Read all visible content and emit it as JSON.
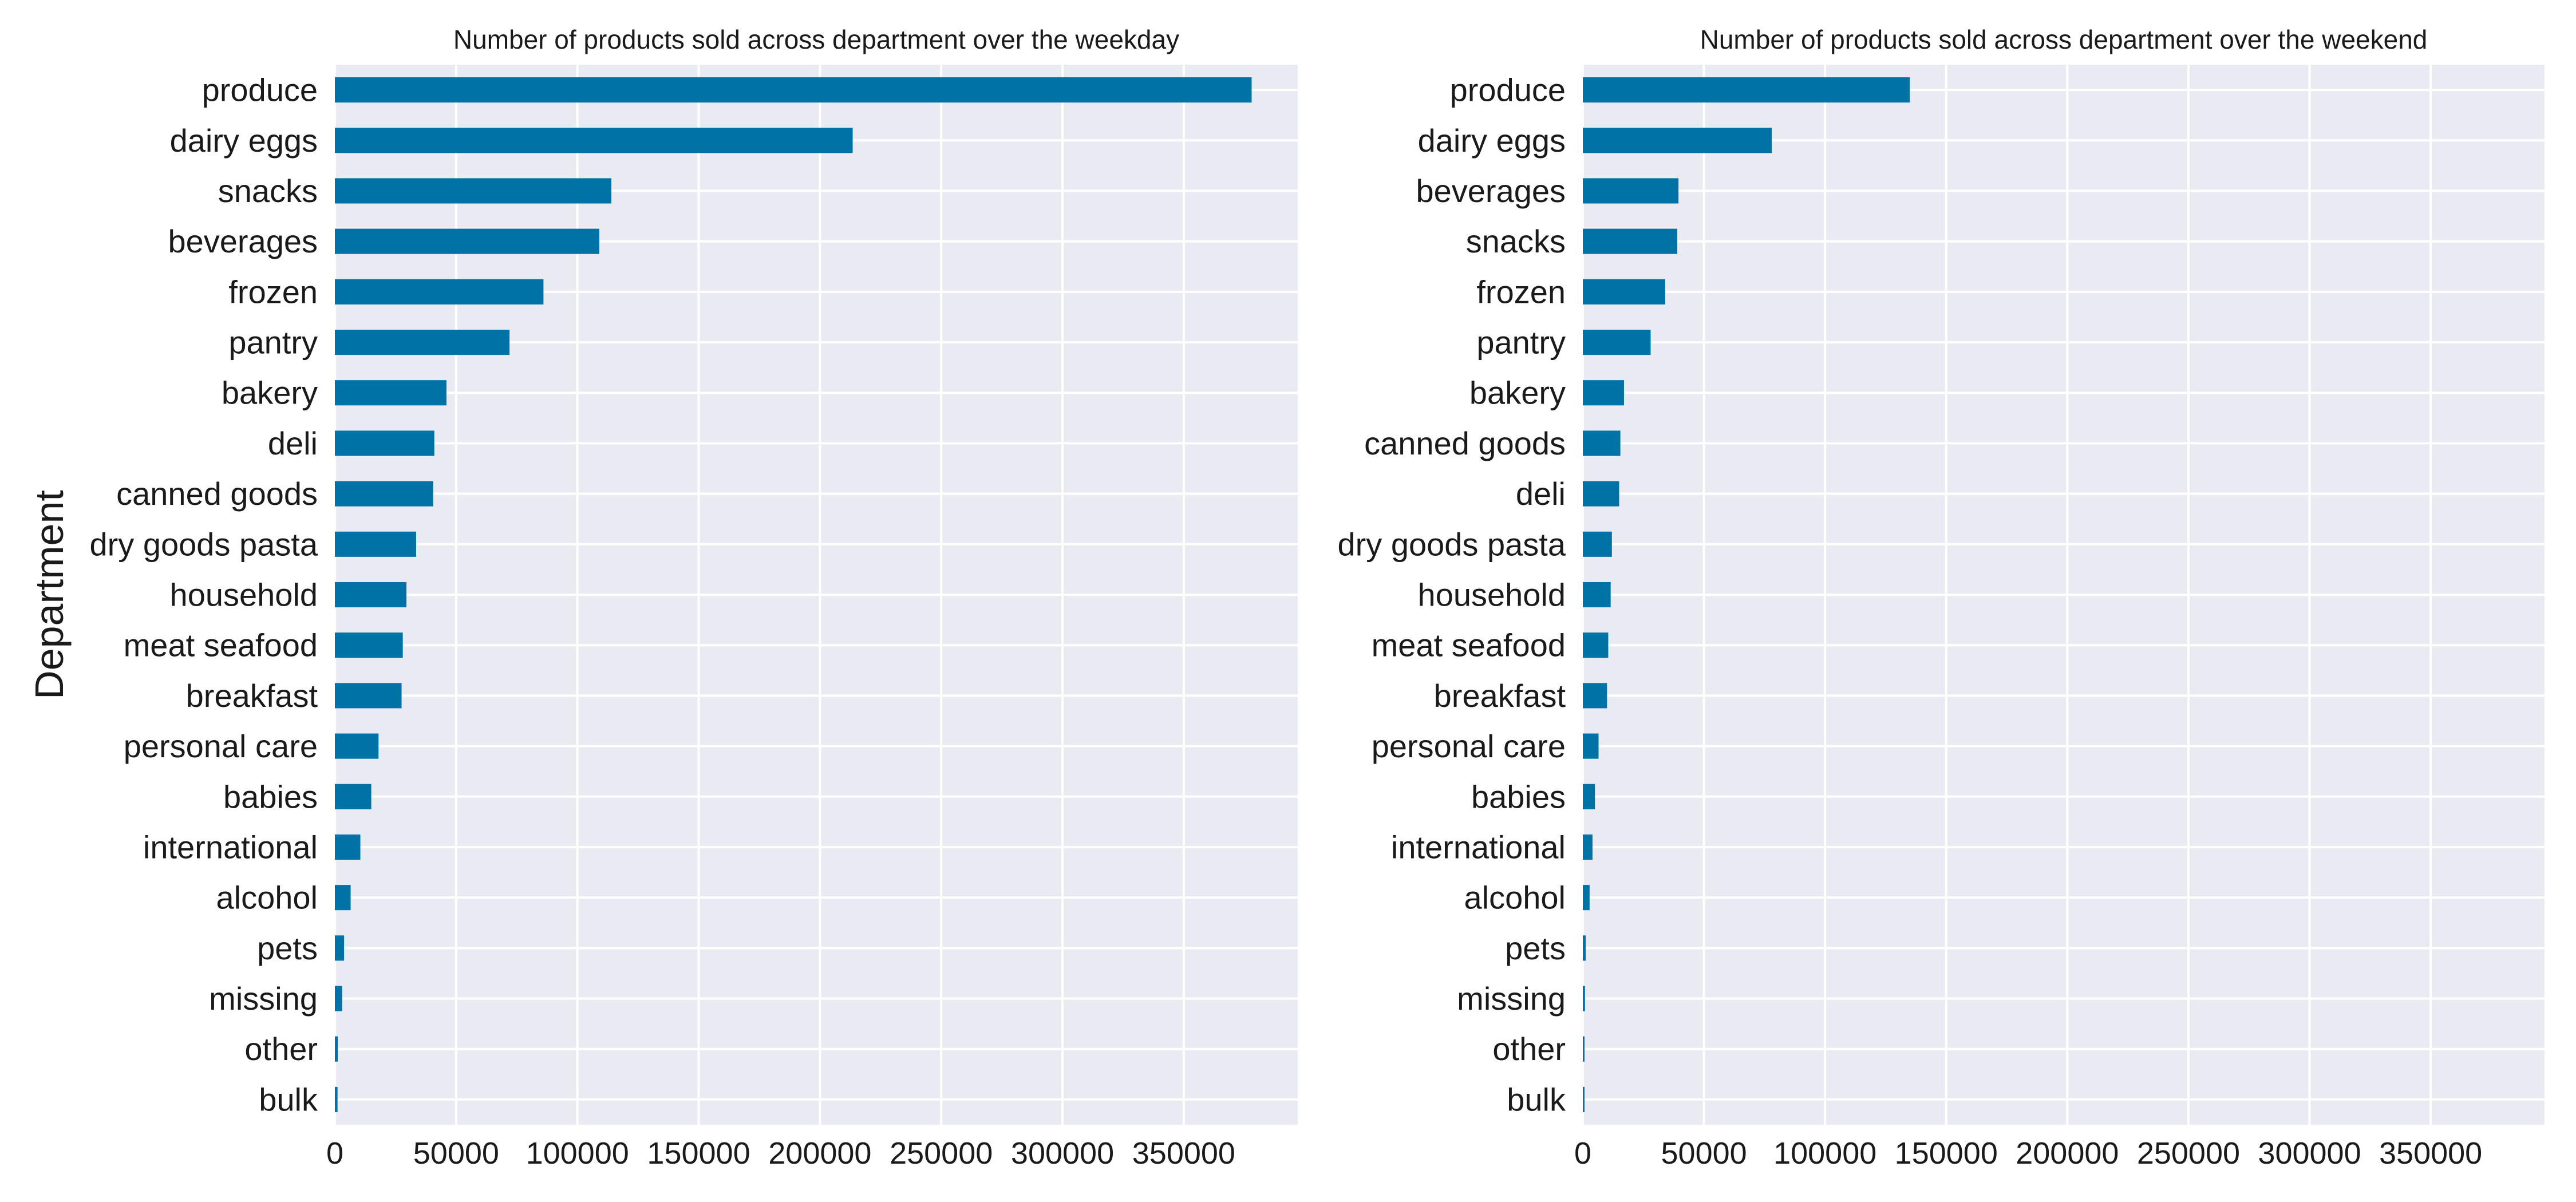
{
  "colors": {
    "background": "#ffffff",
    "plot_background": "#eaeaf2",
    "grid": "#ffffff",
    "bar": "#0072a5"
  },
  "chart_data": [
    {
      "type": "bar",
      "orientation": "horizontal",
      "title": "Number of products sold across department over the weekday",
      "ylabel": "Department",
      "xlabel": "",
      "xlim": [
        0,
        397000
      ],
      "xticks": [
        0,
        50000,
        100000,
        150000,
        200000,
        250000,
        300000,
        350000
      ],
      "grid": true,
      "categories": [
        "produce",
        "dairy eggs",
        "snacks",
        "beverages",
        "frozen",
        "pantry",
        "bakery",
        "deli",
        "canned goods",
        "dry goods pasta",
        "household",
        "meat seafood",
        "breakfast",
        "personal care",
        "babies",
        "international",
        "alcohol",
        "pets",
        "missing",
        "other",
        "bulk"
      ],
      "values": [
        378000,
        213500,
        114000,
        109000,
        86000,
        72000,
        46000,
        41000,
        40500,
        33500,
        29500,
        28000,
        27500,
        18000,
        15000,
        10500,
        6500,
        3800,
        3000,
        1200,
        1100
      ]
    },
    {
      "type": "bar",
      "orientation": "horizontal",
      "title": "Number of products sold across department over the weekend",
      "ylabel": "",
      "xlabel": "",
      "xlim": [
        0,
        397000
      ],
      "xticks": [
        0,
        50000,
        100000,
        150000,
        200000,
        250000,
        300000,
        350000
      ],
      "grid": true,
      "categories": [
        "produce",
        "dairy eggs",
        "beverages",
        "snacks",
        "frozen",
        "pantry",
        "bakery",
        "canned goods",
        "deli",
        "dry goods pasta",
        "household",
        "meat seafood",
        "breakfast",
        "personal care",
        "babies",
        "international",
        "alcohol",
        "pets",
        "missing",
        "other",
        "bulk"
      ],
      "values": [
        135000,
        78000,
        39500,
        39000,
        34000,
        28000,
        17000,
        15500,
        15000,
        12000,
        11500,
        10500,
        10000,
        6500,
        5000,
        4000,
        2800,
        1200,
        900,
        400,
        300
      ]
    }
  ]
}
